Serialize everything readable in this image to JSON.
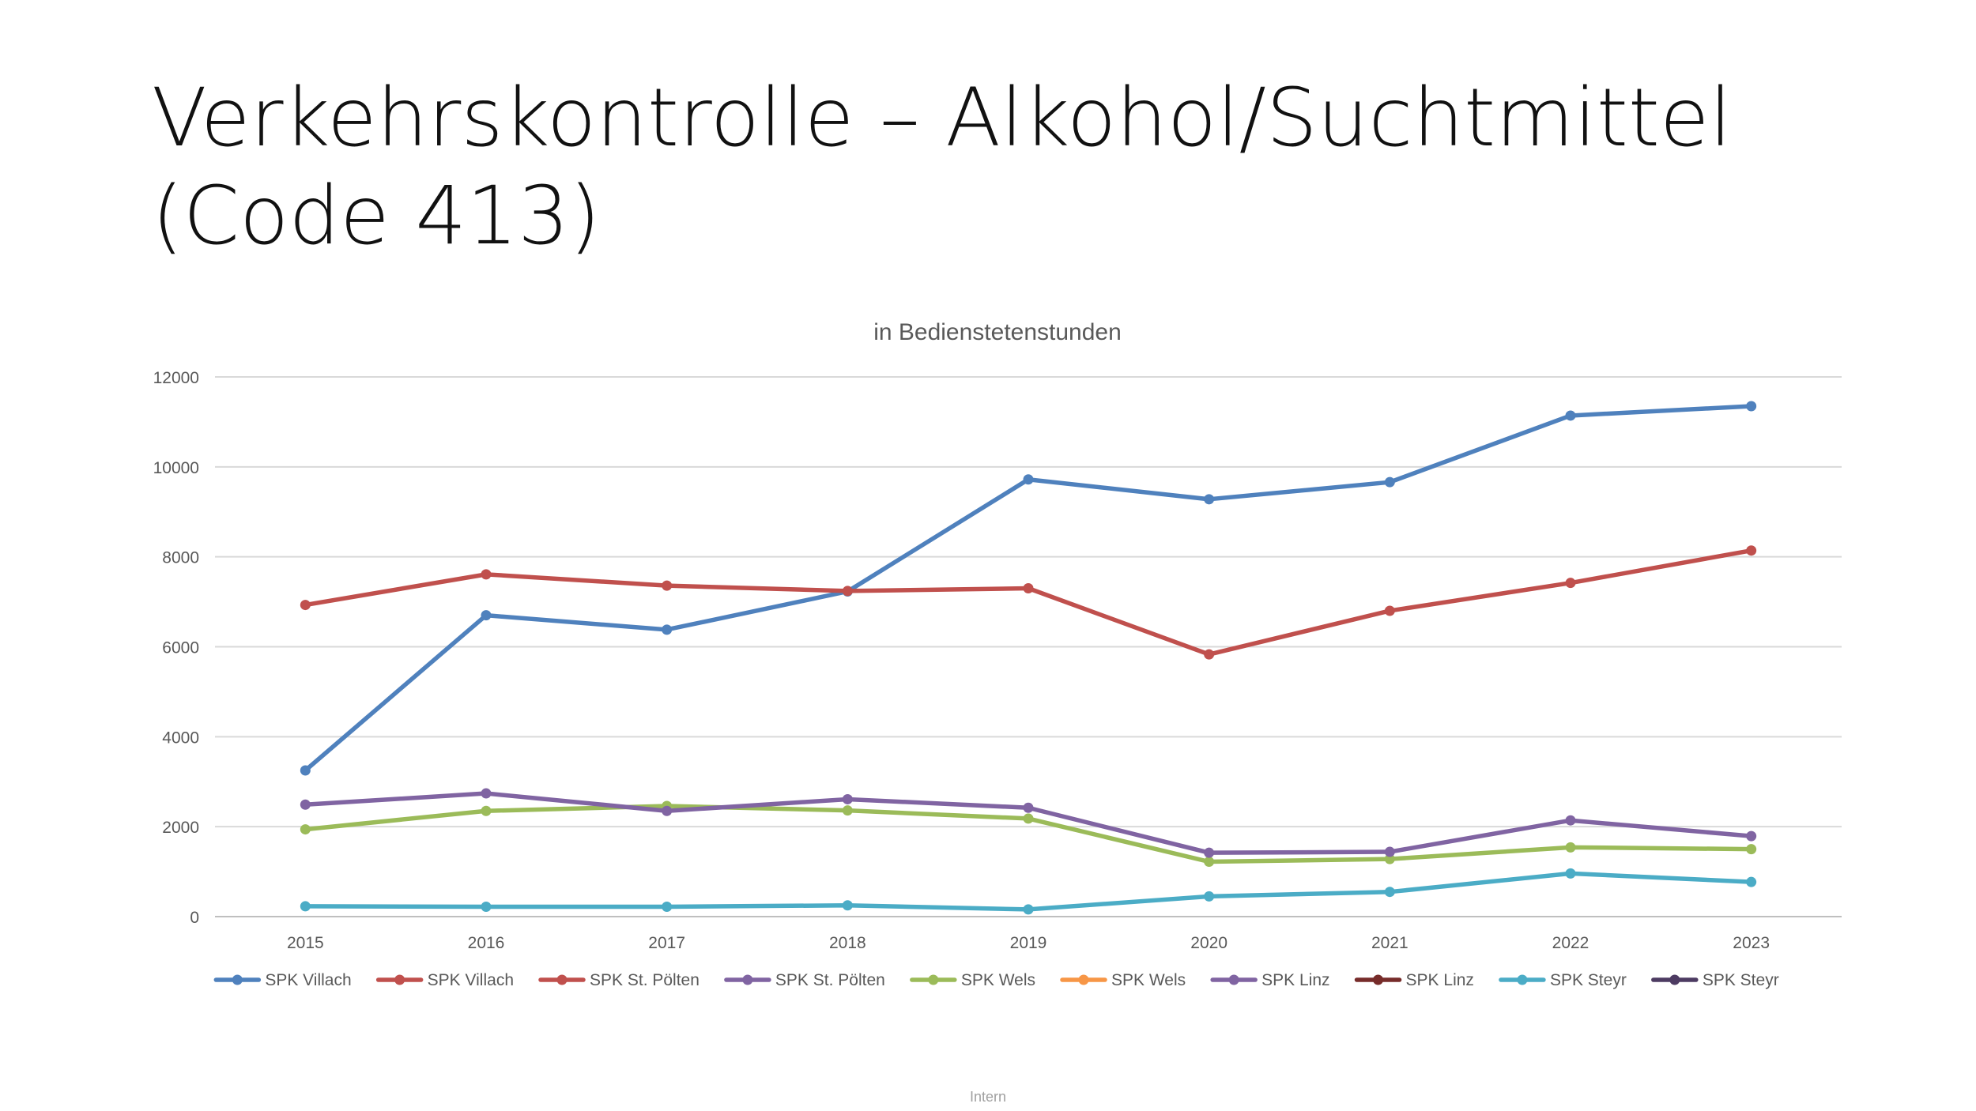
{
  "slide": {
    "title_line1": "Verkehrskontrolle – Alkohol/Suchtmittel",
    "title_line2": "(Code 413)",
    "footer": "Intern"
  },
  "chart_data": {
    "type": "line",
    "title": "in Bedienstetenstunden",
    "xlabel": "",
    "ylabel": "",
    "categories": [
      "2015",
      "2016",
      "2017",
      "2018",
      "2019",
      "2020",
      "2021",
      "2022",
      "2023"
    ],
    "ylim": [
      0,
      12000
    ],
    "yticks": [
      0,
      2000,
      4000,
      6000,
      8000,
      10000,
      12000
    ],
    "grid": true,
    "legend_position": "bottom",
    "series": [
      {
        "name": "SPK Villach",
        "color": "#4F81BD",
        "values": [
          3250,
          6700,
          6380,
          7230,
          9720,
          9280,
          9660,
          11140,
          11350
        ]
      },
      {
        "name": "SPK Villach",
        "color": "#C0504D",
        "values": null
      },
      {
        "name": "SPK St. Pölten",
        "color": "#C0504D",
        "values": [
          6930,
          7610,
          7360,
          7240,
          7300,
          5830,
          6800,
          7420,
          8140
        ]
      },
      {
        "name": "SPK St. Pölten",
        "color": "#8064A2",
        "values": null
      },
      {
        "name": "SPK Wels",
        "color": "#9BBB59",
        "values": [
          1940,
          2350,
          2460,
          2360,
          2180,
          1220,
          1280,
          1540,
          1500
        ]
      },
      {
        "name": "SPK Wels",
        "color": "#F79646",
        "values": null
      },
      {
        "name": "SPK Linz",
        "color": "#8064A2",
        "values": [
          2490,
          2740,
          2350,
          2610,
          2420,
          1420,
          1440,
          2140,
          1790
        ]
      },
      {
        "name": "SPK Linz",
        "color": "#772C2A",
        "values": null
      },
      {
        "name": "SPK Steyr",
        "color": "#4BACC6",
        "values": [
          230,
          220,
          220,
          250,
          160,
          450,
          550,
          960,
          770
        ]
      },
      {
        "name": "SPK Steyr",
        "color": "#4D3B62",
        "values": null
      }
    ]
  }
}
